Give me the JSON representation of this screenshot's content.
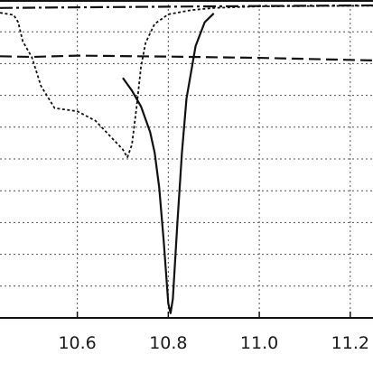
{
  "chart_data": {
    "type": "line",
    "title": "",
    "xlabel": "",
    "ylabel": "",
    "xlim": [
      10.43,
      11.25
    ],
    "ylim": [
      0,
      1
    ],
    "grid": true,
    "legend": "none",
    "x_ticks": [
      10.6,
      10.8,
      11.0,
      11.2
    ],
    "x_tick_labels": [
      "10.6",
      "10.8",
      "11.0",
      "11.2"
    ],
    "x_gridlines": [
      10.6,
      10.8,
      11.0,
      11.2
    ],
    "y_gridlines": [
      0.1,
      0.2,
      0.3,
      0.4,
      0.5,
      0.6,
      0.7,
      0.8,
      0.9
    ],
    "colors": {
      "ink": "#111111",
      "grid": "#555555",
      "background": "#ffffff"
    },
    "series": [
      {
        "style": "solid",
        "x": [
          10.7,
          10.72,
          10.74,
          10.76,
          10.77,
          10.78,
          10.79,
          10.8,
          10.805,
          10.81,
          10.82,
          10.83,
          10.84,
          10.86,
          10.88,
          10.9
        ],
        "y": [
          0.755,
          0.715,
          0.665,
          0.585,
          0.52,
          0.41,
          0.24,
          0.045,
          0.015,
          0.06,
          0.3,
          0.52,
          0.69,
          0.855,
          0.93,
          0.958
        ]
      },
      {
        "style": "dotted",
        "x": [
          10.43,
          10.46,
          10.47,
          10.48,
          10.5,
          10.52,
          10.55,
          10.6,
          10.64,
          10.67,
          10.7,
          10.71,
          10.72,
          10.73,
          10.74,
          10.75,
          10.77,
          10.8,
          10.85,
          10.9,
          11.0,
          11.25
        ],
        "y": [
          0.96,
          0.953,
          0.93,
          0.87,
          0.82,
          0.73,
          0.66,
          0.65,
          0.62,
          0.575,
          0.53,
          0.505,
          0.545,
          0.66,
          0.79,
          0.865,
          0.925,
          0.955,
          0.968,
          0.975,
          0.98,
          0.982
        ]
      },
      {
        "style": "dashed",
        "x": [
          10.43,
          10.5,
          10.6,
          10.8,
          11.0,
          11.25
        ],
        "y": [
          0.823,
          0.821,
          0.825,
          0.822,
          0.818,
          0.81
        ]
      },
      {
        "style": "dash-dot",
        "x": [
          10.43,
          10.6,
          10.8,
          11.0,
          11.25
        ],
        "y": [
          0.975,
          0.977,
          0.979,
          0.981,
          0.983
        ]
      }
    ]
  }
}
